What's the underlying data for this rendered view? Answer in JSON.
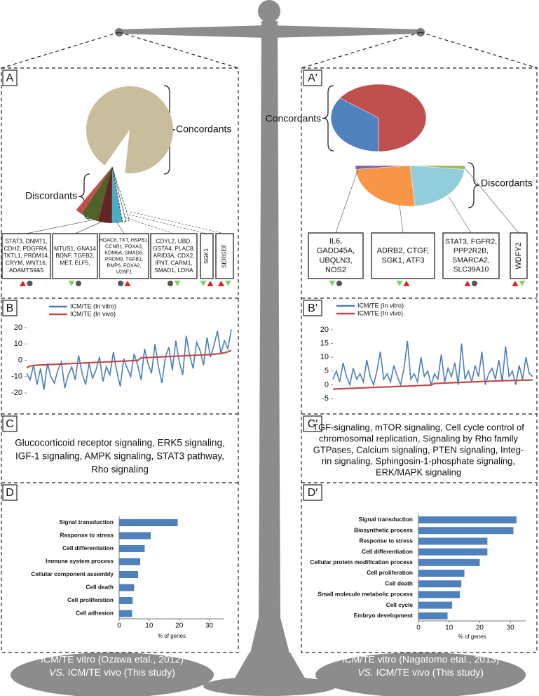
{
  "figure": {
    "left": {
      "letters": [
        "A",
        "B",
        "C",
        "D"
      ],
      "concordant_label": "Concordants",
      "discordant_label": "Discordants",
      "gene_boxes": [
        [
          "STAT3, DNMT1,",
          "CDH2, PDGFRA,",
          "TKTL1, PRDM14,",
          "CRYM, WNT16,",
          "ADAMTS9&5"
        ],
        [
          "MTUS1, GNA14",
          "BDNF, TGFB2,",
          "MET, ELF5,"
        ],
        [
          "HDAC8, TKT, HSPB1,",
          "CCNB1, FOXA3,",
          "KDM6A, SMAD6,",
          "PRDM9, TGFB1,",
          "BMP6, FOXA2,",
          "U2AF1"
        ],
        [
          "CDYL2, UBD,",
          "GSTA4, PLAC8,",
          "ARID3A, CDX2,",
          "IFNT, CARM1,",
          "SMAD1, LDHA"
        ],
        [
          "SGK1"
        ],
        [
          "SERGEF"
        ]
      ],
      "pathways": [
        "Glucocorticoid receptor signaling, ERK5 signaling,",
        "IGF-1 signaling, AMPK signaling, STAT3 pathway,",
        "Rho signaling"
      ],
      "caption": [
        "ICM/TE vitro (Ozawa etal., 2012)",
        "VS.",
        "ICM/TE vivo (This study)"
      ]
    },
    "right": {
      "letters": [
        "A′",
        "B′",
        "C′",
        "D′"
      ],
      "concordant_label": "Concordants",
      "discordant_label": "Discordants",
      "gene_boxes": [
        [
          "IL6,",
          "GADD45A,",
          "UBQLN3,",
          "NOS2"
        ],
        [
          "ADRB2, CTGF,",
          "SGK1, ATF3"
        ],
        [
          "STAT3, FGFR2,",
          "PPP2R2B,",
          "SMARCA2,",
          "SLC39A10"
        ],
        [
          "WDFY2"
        ]
      ],
      "pathways": [
        "TGF-signaling, mTOR signaling, Cell cycle control of",
        "chromosomal replication, Signaling by Rho family",
        "GTPases, Calcium signaling, PTEN signaling, Integ-",
        "rin signaling, Sphingosin-1-phosphate signaling,",
        "ERK/MAPK signaling"
      ],
      "caption": [
        "ICM/TE vitro (Nagatomo etal., 2013)",
        "VS.",
        "ICM/TE vivo (This study)"
      ]
    }
  },
  "chart_data": [
    {
      "type": "pie",
      "values": [
        92,
        1,
        2.5,
        2,
        1.5,
        0.5,
        0.5
      ],
      "colors": [
        "#c8bd9d",
        "#c0504d",
        "#4f6228",
        "#632523",
        "#4bacc6",
        "#ffffff",
        "#ffffff"
      ]
    },
    {
      "type": "line",
      "ylim": [
        -20,
        20
      ],
      "yticks": [
        -20,
        -10,
        0,
        10,
        20
      ],
      "series": [
        {
          "name": "ICM/TE (In vitro)",
          "color": "#4a7ebb",
          "values": [
            -8,
            -12,
            -3,
            -15,
            -5,
            -18,
            -2,
            -10,
            -14,
            -6,
            -1,
            -17,
            -9,
            -4,
            -12,
            3,
            -8,
            -15,
            -2,
            -11,
            -6,
            2,
            -13,
            -4,
            -9,
            5,
            -7,
            -16,
            1,
            -5,
            -10,
            4,
            -3,
            -12,
            7,
            -2,
            -8,
            10,
            -4,
            -14,
            2,
            8,
            -6,
            12,
            -1,
            -9,
            15,
            3,
            -5,
            11,
            6,
            -3,
            14,
            2,
            9,
            18,
            4,
            12,
            7,
            19
          ]
        },
        {
          "name": "ICM/TE (In vivo)",
          "color": "#be4b48",
          "values": [
            -4.5,
            -3.5,
            -3.2,
            -3,
            -2.9,
            -2.8,
            -2.7,
            -2.6,
            -2.5,
            -2.4,
            -2.3,
            -2.2,
            -2.1,
            -2,
            -1.9,
            -1.8,
            -1.7,
            -1.6,
            -1.5,
            -1.4,
            -1.3,
            -1.2,
            -1.1,
            -1,
            -0.9,
            -0.8,
            -0.7,
            -0.6,
            -0.5,
            -0.4,
            -0.3,
            -0.2,
            -0.1,
            1.5,
            1.6,
            1.7,
            1.8,
            1.9,
            2,
            2.1,
            2.2,
            2.3,
            2.4,
            2.5,
            2.6,
            2.7,
            2.8,
            2.9,
            3,
            3.1,
            3.2,
            3.3,
            3.4,
            3.5,
            3.7,
            3.9,
            4.2,
            4.6,
            5.2,
            6
          ]
        }
      ]
    },
    {
      "type": "barh",
      "color": "#4f81bd",
      "xlabel": "% of genes",
      "xlim": [
        0,
        35
      ],
      "xticks": [
        0,
        10,
        20,
        30
      ],
      "categories": [
        "Signal transduction",
        "Response to stress",
        "Cell differentiation",
        "Immune system process",
        "Cellular component assembly",
        "Cell death",
        "Cell proliferation",
        "Cell adhesion"
      ],
      "values": [
        19.5,
        10.5,
        8.5,
        7,
        6.3,
        5,
        4.5,
        4.3
      ]
    },
    {
      "type": "pie",
      "values": [
        35,
        65
      ],
      "colors": [
        "#4f81bd",
        "#c0504d"
      ]
    },
    {
      "type": "pie",
      "values": [
        3,
        50,
        44,
        3
      ],
      "colors": [
        "#8064a2",
        "#f79646",
        "#92cddc",
        "#9bbb59"
      ]
    },
    {
      "type": "line",
      "ylim": [
        -5,
        20
      ],
      "yticks": [
        -5,
        0,
        5,
        10,
        15,
        20
      ],
      "series": [
        {
          "name": "ICM/TE (In vitro)",
          "color": "#4a7ebb",
          "values": [
            2,
            5,
            1,
            8,
            3,
            0,
            6,
            2,
            4,
            1,
            9,
            3,
            0,
            5,
            12,
            2,
            4,
            1,
            7,
            3,
            0,
            6,
            16,
            2,
            4,
            1,
            10,
            3,
            5,
            0,
            4,
            2,
            11,
            1,
            6,
            3,
            8,
            0,
            15,
            2,
            5,
            1,
            7,
            3,
            12,
            0,
            4,
            6,
            2,
            9,
            1,
            14,
            3,
            5,
            0,
            7,
            2,
            10,
            4,
            3
          ]
        },
        {
          "name": "ICM/TE (In vivo)",
          "color": "#be4b48",
          "values": [
            -1.6,
            -1.5,
            -1.5,
            -1.4,
            -1.4,
            -1.3,
            -1.3,
            -1.2,
            -1.2,
            -1.1,
            -1.1,
            -1,
            -1,
            -0.9,
            -0.9,
            -0.8,
            -0.8,
            -0.7,
            -0.7,
            -0.6,
            -0.6,
            -0.5,
            -0.5,
            -0.4,
            -0.4,
            -0.3,
            -0.3,
            -0.2,
            -0.2,
            -0.1,
            0.5,
            0.5,
            0.6,
            0.6,
            0.7,
            0.7,
            0.8,
            0.8,
            0.9,
            0.9,
            1,
            1,
            1.1,
            1.1,
            1.2,
            1.2,
            1.3,
            1.3,
            1.4,
            1.4,
            1.5,
            1.5,
            1.5,
            1.6,
            1.6,
            1.6,
            1.7,
            1.7,
            1.7,
            1.8
          ]
        }
      ]
    },
    {
      "type": "barh",
      "color": "#4f81bd",
      "xlabel": "% of genes",
      "xlim": [
        0,
        35
      ],
      "xticks": [
        0,
        10,
        20,
        30
      ],
      "categories": [
        "Signal transduction",
        "Biosynthetic process",
        "Response to stress",
        "Cell differentiation",
        "Cellular protein modification process",
        "Cell proliferation",
        "Cell death",
        "Small molecule metabolic process",
        "Cell cycle",
        "Embryo development"
      ],
      "values": [
        32,
        31,
        22.5,
        22.5,
        20,
        15,
        14,
        13.5,
        11,
        9.5
      ]
    }
  ]
}
